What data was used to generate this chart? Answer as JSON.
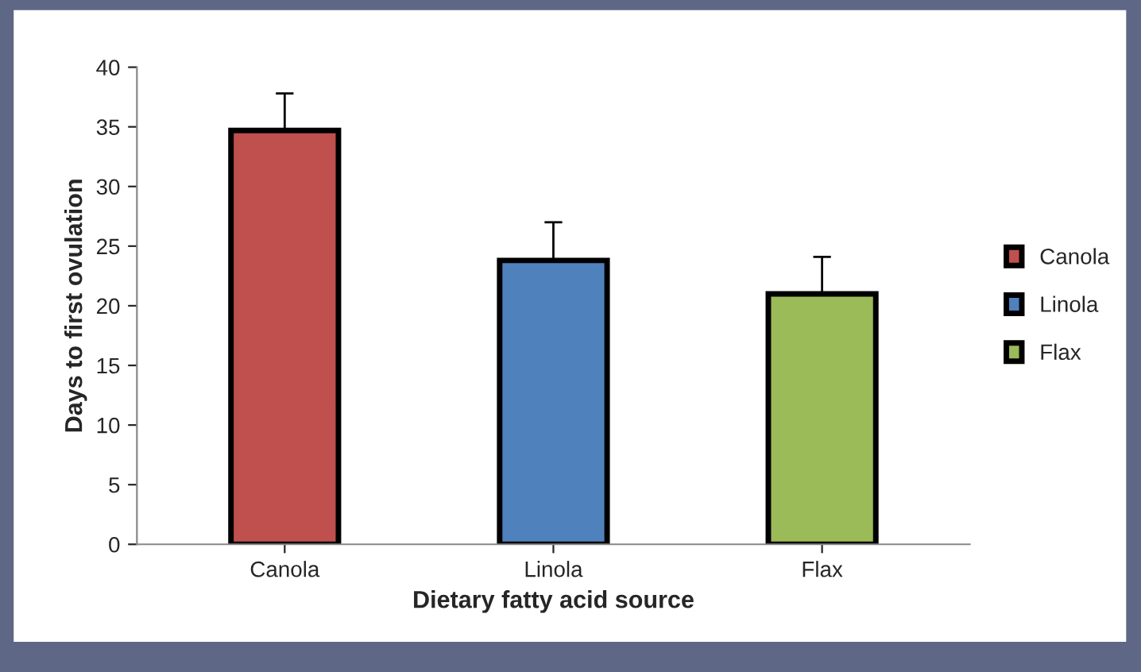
{
  "chart_data": {
    "type": "bar",
    "xlabel": "Dietary fatty acid source",
    "ylabel": "Days to first ovulation",
    "categories": [
      "Canola",
      "Linola",
      "Flax"
    ],
    "series": [
      {
        "name": "Canola",
        "color": "#c0504d",
        "values": [
          34.7,
          null,
          null
        ],
        "errors": [
          [
            34.7,
            37.8
          ],
          null,
          null
        ]
      },
      {
        "name": "Linola",
        "color": "#4f81bd",
        "values": [
          null,
          23.8,
          null
        ],
        "errors": [
          null,
          [
            23.8,
            27.0
          ],
          null
        ]
      },
      {
        "name": "Flax",
        "color": "#9bbb59",
        "values": [
          null,
          null,
          21.0
        ],
        "errors": [
          null,
          null,
          [
            21.0,
            24.1
          ]
        ]
      }
    ],
    "ylim": [
      0,
      40
    ],
    "yticks": [
      0,
      5,
      10,
      15,
      20,
      25,
      30,
      35,
      40
    ],
    "legend": "right"
  }
}
